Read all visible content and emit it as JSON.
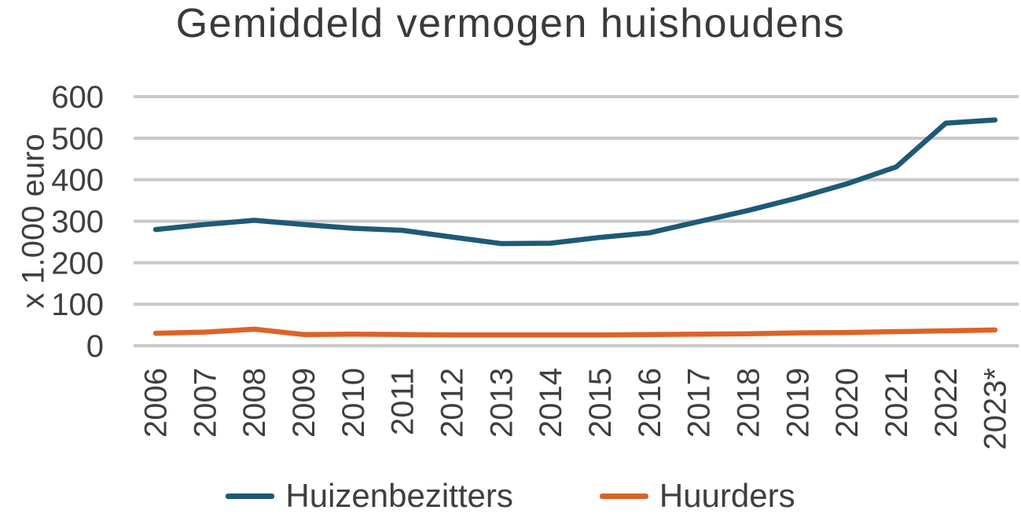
{
  "title": "Gemiddeld vermogen huishoudens",
  "colors": {
    "homeowners_line": "#1E5A76",
    "renters_line": "#DC6328",
    "gridline": "#C8C8C8",
    "text": "#3F3F3F"
  },
  "chart_data": {
    "type": "line",
    "title": "Gemiddeld vermogen huishoudens",
    "xlabel": "",
    "ylabel": "x 1.000 euro",
    "ylim": [
      0,
      600
    ],
    "yticks": [
      0,
      100,
      200,
      300,
      400,
      500,
      600
    ],
    "grid": "horizontal",
    "legend_position": "bottom",
    "categories": [
      "2006",
      "2007",
      "2008",
      "2009",
      "2010",
      "2011",
      "2012",
      "2013",
      "2014",
      "2015",
      "2016",
      "2017",
      "2018",
      "2019",
      "2020",
      "2021",
      "2022",
      "2023*"
    ],
    "series": [
      {
        "name": "Huizenbezitters",
        "color": "#1E5A76",
        "values": [
          280,
          292,
          302,
          292,
          283,
          278,
          262,
          246,
          247,
          261,
          272,
          299,
          326,
          356,
          390,
          431,
          536,
          544
        ]
      },
      {
        "name": "Huurders",
        "color": "#DC6328",
        "values": [
          30,
          33,
          40,
          27,
          28,
          27,
          26,
          26,
          26,
          26,
          27,
          28,
          29,
          31,
          32,
          34,
          36,
          38
        ]
      }
    ]
  }
}
